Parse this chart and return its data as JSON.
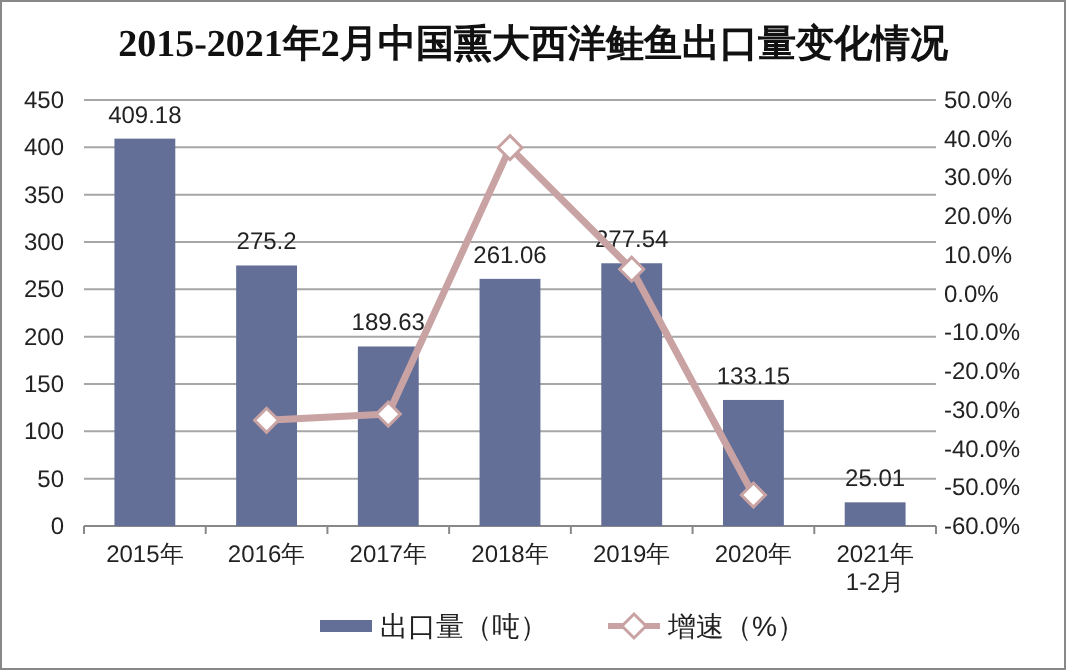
{
  "chart_data": {
    "type": "bar",
    "title": "2015-2021年2月中国熏大西洋鲑鱼出口量变化情况",
    "categories": [
      "2015年",
      "2016年",
      "2017年",
      "2018年",
      "2019年",
      "2020年",
      "2021年\n1-2月"
    ],
    "series": [
      {
        "name": "出口量（吨）",
        "color": "#646f97",
        "values": [
          409.18,
          275.2,
          189.63,
          261.06,
          277.54,
          133.15,
          25.01
        ],
        "value_labels": [
          "409.18",
          "275.2",
          "189.63",
          "261.06",
          "277.54",
          "133.15",
          "25.01"
        ]
      },
      {
        "name": "增速（%）",
        "type": "line",
        "axis": "y2",
        "color": "#c9a3a3",
        "marker": "diamond",
        "values": [
          null,
          -32.7,
          -31.1,
          37.7,
          6.3,
          -52.0,
          null
        ]
      }
    ],
    "ylim": [
      0,
      450
    ],
    "yticks": [
      0,
      50,
      100,
      150,
      200,
      250,
      300,
      350,
      400,
      450
    ],
    "y2lim": [
      -60,
      50
    ],
    "y2ticks": [
      {
        "value": -60,
        "label": "-60.0%"
      },
      {
        "value": -50,
        "label": "-50.0%"
      },
      {
        "value": -40,
        "label": "-40.0%"
      },
      {
        "value": -30,
        "label": "-30.0%"
      },
      {
        "value": -20,
        "label": "-20.0%"
      },
      {
        "value": -10,
        "label": "-10.0%"
      },
      {
        "value": 0,
        "label": "0.0%"
      },
      {
        "value": 10,
        "label": "10.0%"
      },
      {
        "value": 20,
        "label": "20.0%"
      },
      {
        "value": 30,
        "label": "30.0%"
      },
      {
        "value": 40,
        "label": "40.0%"
      },
      {
        "value": 50,
        "label": "50.0%"
      }
    ],
    "grid": "y",
    "legend": "bottom"
  }
}
